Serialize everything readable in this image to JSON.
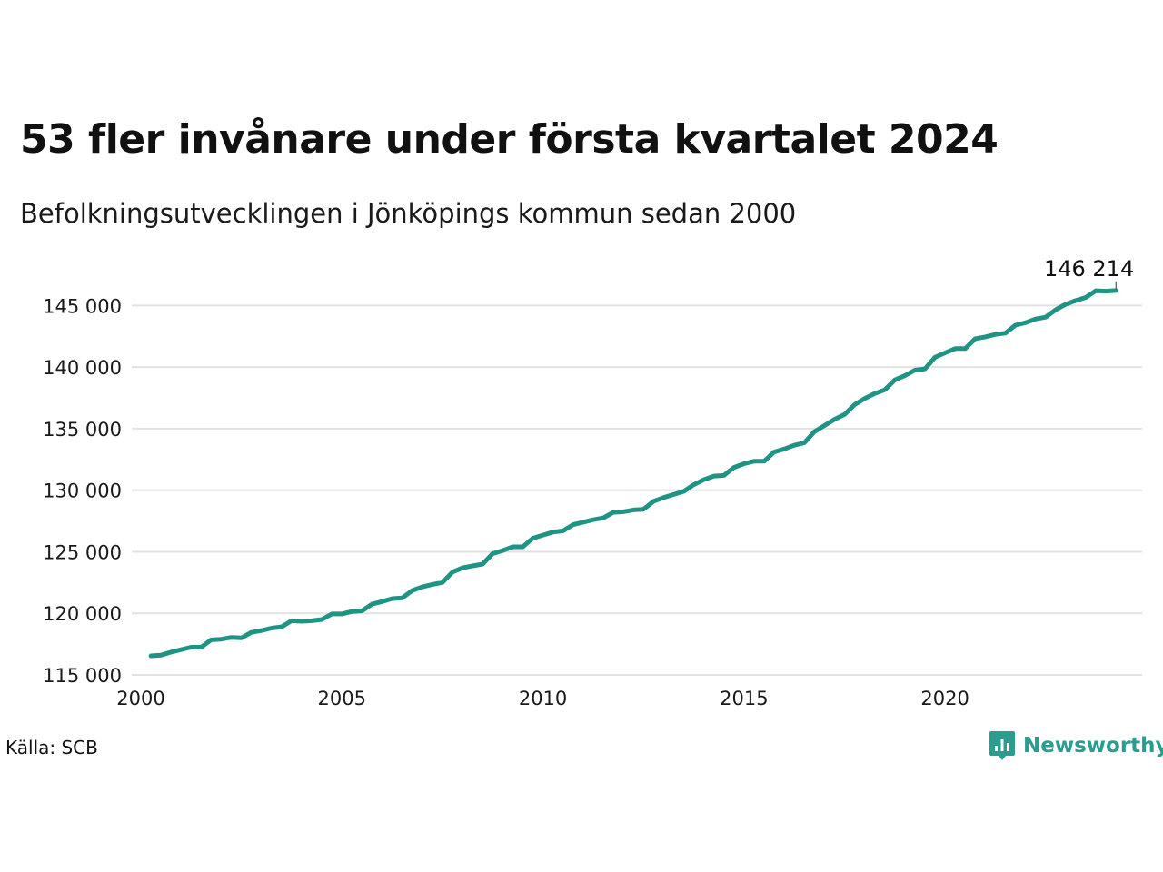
{
  "header": {
    "title": "53 fler invånare under första kvartalet 2024",
    "subtitle": "Befolkningsutvecklingen i Jönköpings kommun sedan 2000"
  },
  "footer": {
    "source": "Källa: SCB",
    "brand": "Newsworthy",
    "brand_icon": "bar-chart-speech-bubble-icon"
  },
  "colors": {
    "line": "#1f9484",
    "grid": "#e2e2e2",
    "brand": "#2a9d8f"
  },
  "chart_data": {
    "type": "line",
    "title": "53 fler invånare under första kvartalet 2024",
    "subtitle": "Befolkningsutvecklingen i Jönköpings kommun sedan 2000",
    "xlabel": "",
    "ylabel": "",
    "xlim": [
      2000.0,
      2024.9
    ],
    "ylim": [
      115000,
      146500
    ],
    "x_ticks": [
      2000,
      2005,
      2010,
      2015,
      2020
    ],
    "x_tick_labels": [
      "2000",
      "2005",
      "2010",
      "2015",
      "2020"
    ],
    "y_ticks": [
      115000,
      120000,
      125000,
      130000,
      135000,
      140000,
      145000
    ],
    "y_tick_labels": [
      "115 000",
      "120 000",
      "125 000",
      "130 000",
      "135 000",
      "140 000",
      "145 000"
    ],
    "grid": "horizontal",
    "end_label": "146 214",
    "series": [
      {
        "x": [
          2000.25,
          2000.5,
          2000.75,
          2001.0,
          2001.25,
          2001.5,
          2001.75,
          2002.0,
          2002.25,
          2002.5,
          2002.75,
          2003.0,
          2003.25,
          2003.5,
          2003.75,
          2004.0,
          2004.25,
          2004.5,
          2004.75,
          2005.0,
          2005.25,
          2005.5,
          2005.75,
          2006.0,
          2006.25,
          2006.5,
          2006.75,
          2007.0,
          2007.25,
          2007.5,
          2007.75,
          2008.0,
          2008.25,
          2008.5,
          2008.75,
          2009.0,
          2009.25,
          2009.5,
          2009.75,
          2010.0,
          2010.25,
          2010.5,
          2010.75,
          2011.0,
          2011.25,
          2011.5,
          2011.75,
          2012.0,
          2012.25,
          2012.5,
          2012.75,
          2013.0,
          2013.25,
          2013.5,
          2013.75,
          2014.0,
          2014.25,
          2014.5,
          2014.75,
          2015.0,
          2015.25,
          2015.5,
          2015.75,
          2016.0,
          2016.25,
          2016.5,
          2016.75,
          2017.0,
          2017.25,
          2017.5,
          2017.75,
          2018.0,
          2018.25,
          2018.5,
          2018.75,
          2019.0,
          2019.25,
          2019.5,
          2019.75,
          2020.0,
          2020.25,
          2020.5,
          2020.75,
          2021.0,
          2021.25,
          2021.5,
          2021.75,
          2022.0,
          2022.25,
          2022.5,
          2022.75,
          2023.0,
          2023.25,
          2023.5,
          2023.75,
          2024.0,
          2024.25
        ],
        "values": [
          116550,
          116600,
          116850,
          117050,
          117250,
          117250,
          117850,
          117900,
          118050,
          118000,
          118450,
          118600,
          118800,
          118900,
          119400,
          119350,
          119400,
          119500,
          119950,
          119950,
          120150,
          120200,
          120750,
          120950,
          121200,
          121250,
          121850,
          122150,
          122350,
          122500,
          123350,
          123700,
          123850,
          124000,
          124850,
          125100,
          125400,
          125400,
          126100,
          126350,
          126600,
          126700,
          127200,
          127400,
          127600,
          127750,
          128200,
          128250,
          128400,
          128450,
          129100,
          129400,
          129650,
          129900,
          130450,
          130850,
          131150,
          131200,
          131850,
          132150,
          132350,
          132350,
          133100,
          133350,
          133650,
          133850,
          134750,
          135250,
          135750,
          136150,
          136950,
          137450,
          137850,
          138150,
          138950,
          139300,
          139750,
          139850,
          140800,
          141150,
          141500,
          141500,
          142300,
          142450,
          142650,
          142750,
          143400,
          143600,
          143900,
          144050,
          144650,
          145100,
          145400,
          145650,
          146200,
          146161,
          146214
        ]
      }
    ]
  }
}
